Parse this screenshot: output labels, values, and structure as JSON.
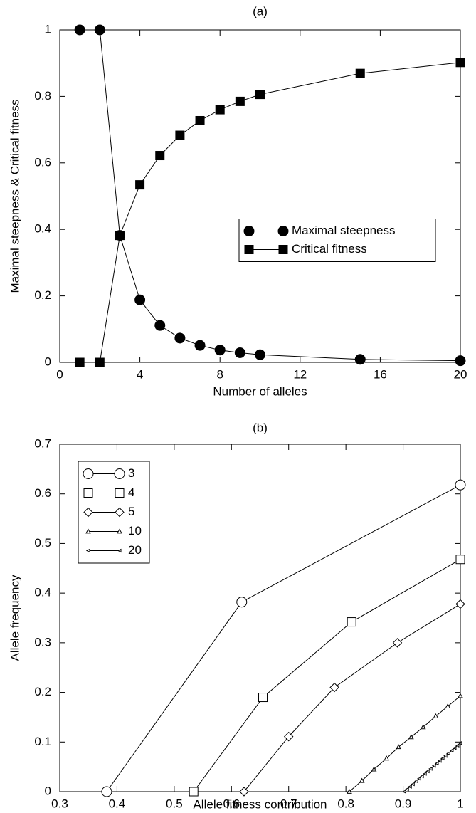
{
  "chart_data": [
    {
      "type": "line",
      "title": "(a)",
      "xlabel": "Number of alleles",
      "ylabel": "Maximal steepness & Critical fitness",
      "x": [
        1,
        2,
        3,
        4,
        5,
        6,
        7,
        8,
        9,
        10,
        15,
        20
      ],
      "series": [
        {
          "name": "Maximal steepness",
          "color": "#000000",
          "marker": "circle",
          "filled": true,
          "values": [
            1,
            1,
            0.382,
            0.188,
            0.111,
            0.073,
            0.051,
            0.037,
            0.029,
            0.023,
            0.009,
            0.005
          ]
        },
        {
          "name": "Critical fitness",
          "color": "#000000",
          "marker": "square",
          "filled": true,
          "values": [
            0,
            0,
            0.382,
            0.534,
            0.622,
            0.683,
            0.727,
            0.76,
            0.785,
            0.806,
            0.869,
            0.902
          ]
        }
      ],
      "xlim": [
        0,
        20
      ],
      "xticks": [
        0,
        4,
        8,
        12,
        16,
        20
      ],
      "ylim": [
        0,
        1
      ],
      "yticks": [
        0,
        0.2,
        0.4,
        0.6,
        0.8,
        1
      ],
      "grid": false,
      "legend": "center right"
    },
    {
      "type": "line",
      "title": "(b)",
      "xlabel": "Allele fitness contribution",
      "ylabel": "Allele frequency",
      "series": [
        {
          "name": "3",
          "color": "#000000",
          "marker": "circle",
          "filled": false,
          "x": [
            0.382,
            0.618,
            1
          ],
          "values": [
            0,
            0.382,
            0.618
          ]
        },
        {
          "name": "4",
          "color": "#000000",
          "marker": "square",
          "filled": false,
          "x": [
            0.534,
            0.655,
            0.81,
            1
          ],
          "values": [
            0,
            0.19,
            0.342,
            0.468
          ]
        },
        {
          "name": "5",
          "color": "#000000",
          "marker": "diamond",
          "filled": false,
          "x": [
            0.622,
            0.7,
            0.78,
            0.89,
            1
          ],
          "values": [
            0,
            0.111,
            0.21,
            0.3,
            0.378
          ]
        },
        {
          "name": "10",
          "color": "#000000",
          "marker": "triangle",
          "filled": false,
          "x": [
            0.806,
            0.828,
            0.849,
            0.871,
            0.892,
            0.914,
            0.935,
            0.957,
            0.978,
            1
          ],
          "values": [
            0,
            0.022,
            0.045,
            0.067,
            0.09,
            0.11,
            0.13,
            0.152,
            0.172,
            0.193
          ]
        },
        {
          "name": "20",
          "color": "#000000",
          "marker": "tri-left",
          "filled": false,
          "x": [
            0.902,
            0.907,
            0.912,
            0.917,
            0.923,
            0.928,
            0.933,
            0.938,
            0.943,
            0.948,
            0.954,
            0.959,
            0.964,
            0.969,
            0.974,
            0.979,
            0.985,
            0.99,
            0.995,
            1
          ],
          "values": [
            0,
            0.005,
            0.01,
            0.015,
            0.021,
            0.026,
            0.031,
            0.036,
            0.041,
            0.046,
            0.052,
            0.057,
            0.062,
            0.067,
            0.072,
            0.077,
            0.083,
            0.088,
            0.093,
            0.098
          ]
        }
      ],
      "xlim": [
        0.3,
        1
      ],
      "xticks": [
        0.3,
        0.4,
        0.5,
        0.6,
        0.7,
        0.8,
        0.9,
        1
      ],
      "ylim": [
        0,
        0.7
      ],
      "yticks": [
        0,
        0.1,
        0.2,
        0.3,
        0.4,
        0.5,
        0.6,
        0.7
      ],
      "grid": false,
      "legend": "upper left"
    }
  ]
}
